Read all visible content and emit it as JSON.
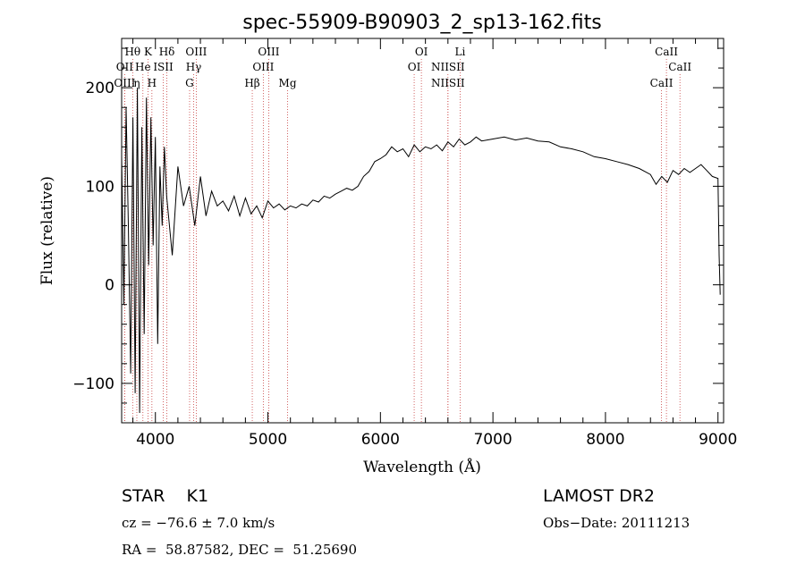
{
  "chart_data": {
    "type": "line",
    "title": "spec-55909-B90903_2_sp13-162.fits",
    "xlabel": "Wavelength (Å)",
    "ylabel": "Flux (relative)",
    "xlim": [
      3700,
      9050
    ],
    "ylim": [
      -140,
      250
    ],
    "xticks": [
      4000,
      5000,
      6000,
      7000,
      8000,
      9000
    ],
    "yticks": [
      -100,
      0,
      100,
      200
    ],
    "grid": false,
    "series": [
      {
        "x": [
          3700,
          3720,
          3740,
          3760,
          3780,
          3800,
          3820,
          3840,
          3860,
          3880,
          3900,
          3920,
          3940,
          3960,
          3980,
          4000,
          4020,
          4040,
          4060,
          4080,
          4100,
          4150,
          4200,
          4250,
          4300,
          4350,
          4400,
          4450,
          4500,
          4550,
          4600,
          4650,
          4700,
          4750,
          4800,
          4850,
          4900,
          4950,
          5000,
          5050,
          5100,
          5150,
          5200,
          5250,
          5300,
          5350,
          5400,
          5450,
          5500,
          5550,
          5600,
          5650,
          5700,
          5750,
          5800,
          5850,
          5900,
          5950,
          6000,
          6050,
          6100,
          6150,
          6200,
          6250,
          6300,
          6350,
          6400,
          6450,
          6500,
          6550,
          6600,
          6650,
          6700,
          6750,
          6800,
          6850,
          6900,
          7000,
          7100,
          7200,
          7300,
          7400,
          7500,
          7600,
          7700,
          7800,
          7900,
          8000,
          8100,
          8200,
          8300,
          8400,
          8450,
          8500,
          8550,
          8600,
          8650,
          8700,
          8750,
          8800,
          8850,
          8900,
          8950,
          9000,
          9010,
          9020
        ],
        "values": [
          130,
          -20,
          180,
          60,
          -90,
          170,
          -110,
          200,
          -130,
          160,
          -50,
          190,
          20,
          170,
          40,
          150,
          -60,
          120,
          60,
          140,
          90,
          30,
          120,
          80,
          100,
          60,
          110,
          70,
          95,
          80,
          85,
          75,
          90,
          70,
          88,
          72,
          80,
          68,
          85,
          78,
          82,
          76,
          80,
          78,
          82,
          80,
          86,
          84,
          90,
          88,
          92,
          95,
          98,
          96,
          100,
          110,
          115,
          125,
          128,
          132,
          140,
          135,
          138,
          130,
          142,
          135,
          140,
          138,
          142,
          136,
          145,
          140,
          148,
          142,
          145,
          150,
          146,
          148,
          150,
          147,
          149,
          146,
          145,
          140,
          138,
          135,
          130,
          128,
          125,
          122,
          118,
          112,
          102,
          110,
          104,
          116,
          112,
          118,
          114,
          118,
          122,
          116,
          110,
          108,
          30,
          -10
        ]
      }
    ],
    "line_markers": [
      {
        "label": "Hθ",
        "x": 3798,
        "row": 1
      },
      {
        "label": "K",
        "x": 3934,
        "row": 1
      },
      {
        "label": "Hδ",
        "x": 4102,
        "row": 1
      },
      {
        "label": "OII",
        "x": 3727,
        "row": 2
      },
      {
        "label": "He",
        "x": 3889,
        "row": 2
      },
      {
        "label": "ISII",
        "x": 4070,
        "row": 2
      },
      {
        "label": "OIII",
        "x": 3727,
        "row": 3
      },
      {
        "label": "η",
        "x": 3835,
        "row": 3
      },
      {
        "label": "H",
        "x": 3969,
        "row": 3
      },
      {
        "label": "OIII",
        "x": 4363,
        "row": 1
      },
      {
        "label": "Hγ",
        "x": 4340,
        "row": 2
      },
      {
        "label": "G",
        "x": 4304,
        "row": 3
      },
      {
        "label": "OIII",
        "x": 5007,
        "row": 1
      },
      {
        "label": "OIII",
        "x": 4959,
        "row": 2
      },
      {
        "label": "Hβ",
        "x": 4861,
        "row": 3
      },
      {
        "label": "Mg",
        "x": 5175,
        "row": 3
      },
      {
        "label": "OI",
        "x": 6364,
        "row": 1
      },
      {
        "label": "OI",
        "x": 6300,
        "row": 2
      },
      {
        "label": "Li",
        "x": 6708,
        "row": 1
      },
      {
        "label": "NIISII",
        "x": 6600,
        "row": 2
      },
      {
        "label": "NIISII",
        "x": 6600,
        "row": 3
      },
      {
        "label": "CaII",
        "x": 8542,
        "row": 1
      },
      {
        "label": "CaII",
        "x": 8662,
        "row": 2
      },
      {
        "label": "CaII",
        "x": 8498,
        "row": 3
      }
    ]
  },
  "info": {
    "object": "STAR    K1",
    "survey": "LAMOST DR2",
    "velocity": "cz = −76.6 ± 7.0 km/s",
    "obs_date": "Obs−Date: 20111213",
    "coords": "RA =  58.87582, DEC =  51.25690"
  }
}
